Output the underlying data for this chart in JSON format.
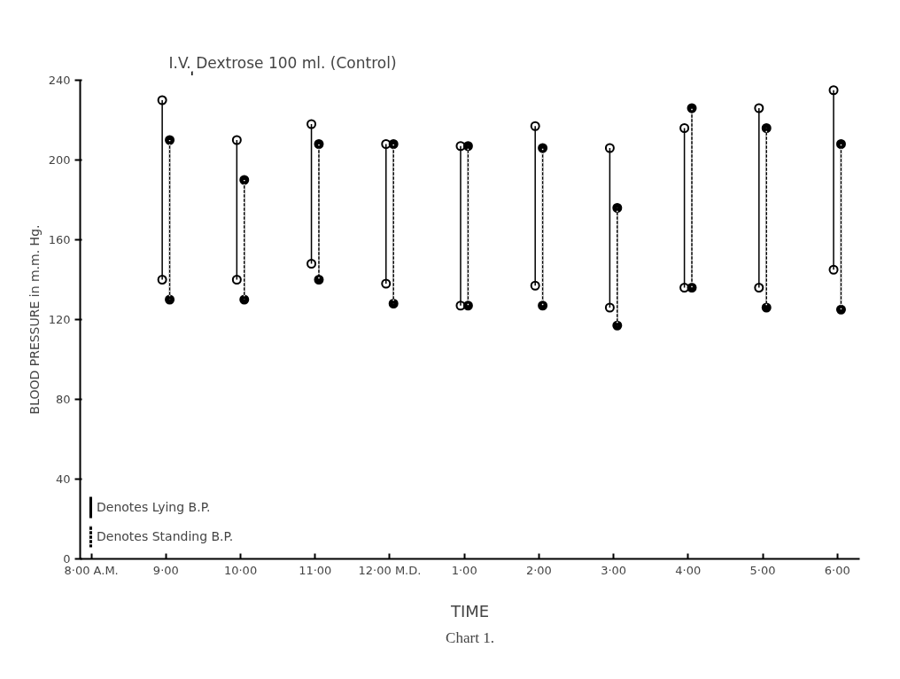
{
  "chart_data": {
    "type": "bar",
    "xlabel": "TIME",
    "ylabel": "BLOOD PRESSURE in m.m. Hg.",
    "categories": [
      "8·00 A.M.",
      "9·00",
      "10·00",
      "11·00",
      "12·00 M.D.",
      "1·00",
      "2·00",
      "3·00",
      "4·00",
      "5·00",
      "6·00"
    ],
    "series": [
      {
        "name": "Denotes Lying B.P.",
        "color": "#000000",
        "line_style": "solid",
        "base": [
          null,
          140,
          140,
          148,
          138,
          127,
          137,
          126,
          136,
          136,
          145
        ],
        "values": [
          null,
          90,
          70,
          70,
          70,
          80,
          80,
          80,
          80,
          90,
          90
        ]
      },
      {
        "name": "Denotes Standing B.P.",
        "color": "#000000",
        "line_style": "dashed",
        "base": [
          null,
          130,
          130,
          140,
          128,
          127,
          127,
          117,
          136,
          126,
          125
        ],
        "values": [
          null,
          80,
          60,
          68,
          80,
          80,
          79,
          59,
          90,
          90,
          83
        ]
      },
      {
        "type": "scatter",
        "color": "#ffffff",
        "marker": "circle",
        "values": [
          null,
          230,
          210,
          218,
          208,
          207,
          217,
          206,
          216,
          226,
          235
        ]
      },
      {
        "type": "scatter",
        "color": "#ffffff",
        "marker": "circle",
        "values": [
          null,
          140,
          140,
          148,
          138,
          127,
          137,
          126,
          136,
          136,
          145
        ]
      },
      {
        "type": "scatter",
        "color": "#000000",
        "marker": "circle",
        "values": [
          null,
          210,
          190,
          208,
          208,
          207,
          206,
          176,
          226,
          216,
          208
        ]
      },
      {
        "type": "scatter",
        "color": "#000000",
        "marker": "circle",
        "values": [
          null,
          130,
          130,
          140,
          128,
          127,
          127,
          117,
          136,
          126,
          125
        ]
      }
    ],
    "ylim": [
      0,
      240
    ],
    "yticks": [
      0,
      40,
      80,
      120,
      160,
      200,
      240
    ],
    "grid": false,
    "legend": "bottom left",
    "annotations": [
      "I.V. Dextrose 100 ml. (Control)",
      "Chart 1."
    ]
  }
}
